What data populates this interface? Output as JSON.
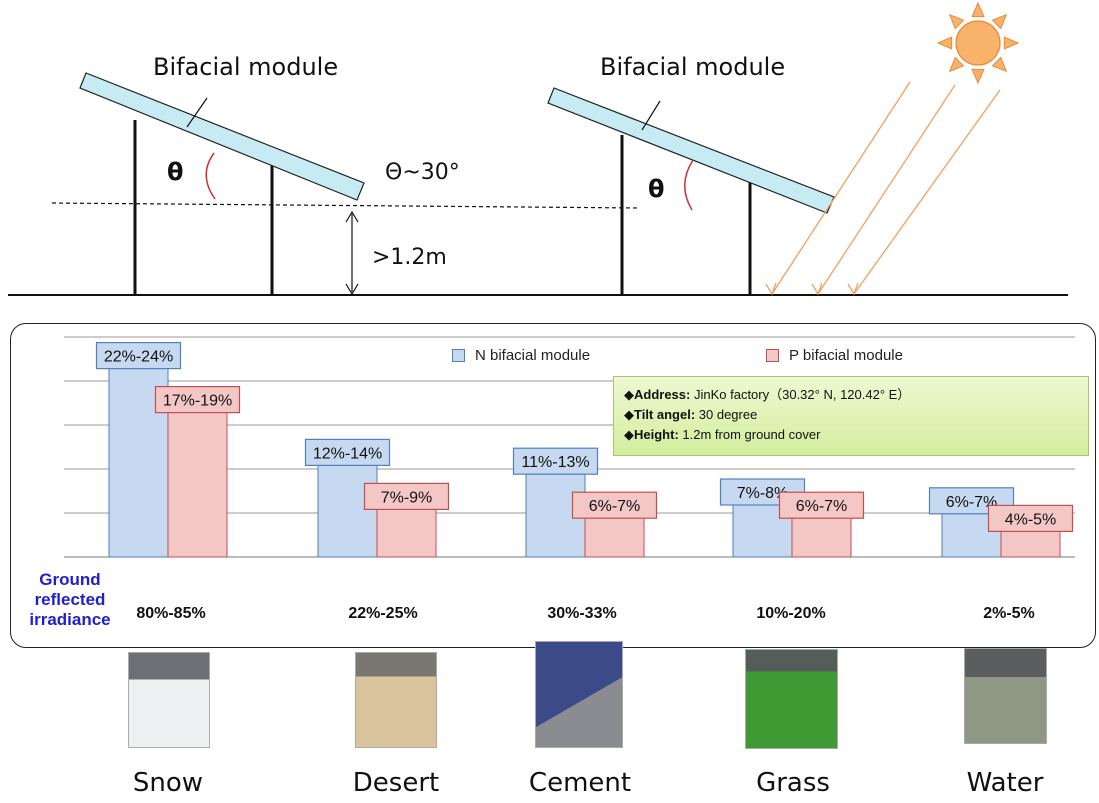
{
  "diagram": {
    "left_module_label": "Bifacial module",
    "right_module_label": "Bifacial module",
    "theta_symbol_left": "θ",
    "theta_symbol_right": "θ",
    "tilt_note": "Θ~30°",
    "height_note": ">1.2m"
  },
  "info": {
    "address_label": "Address:",
    "address_value": " JinKo factory（30.32° N, 120.42° E）",
    "tilt_label": "Tilt angel:",
    "tilt_value": " 30 degree",
    "height_label": "Height:",
    "height_value": " 1.2m from ground cover",
    "bullet": "◆"
  },
  "chart_data": {
    "type": "bar",
    "categories": [
      "Snow",
      "Desert",
      "Cement",
      "Grass",
      "Water"
    ],
    "series": [
      {
        "name": "N bifacial module",
        "values": [
          23,
          12,
          11,
          7.5,
          6.5
        ],
        "labels": [
          "22%-24%",
          "12%-14%",
          "11%-13%",
          "7%-8%",
          "6%-7%"
        ],
        "color": "#c6d9f1"
      },
      {
        "name": "P bifacial module",
        "values": [
          18,
          7,
          6,
          6,
          4.5
        ],
        "labels": [
          "17%-19%",
          "7%-9%",
          "6%-7%",
          "6%-7%",
          "4%-5%"
        ],
        "color": "#f4c7c7"
      }
    ],
    "ylim": [
      0,
      25
    ],
    "grid": true,
    "legend": "top",
    "ground_reflected_title": "Ground reflected irradiance",
    "ground_reflected": [
      "80%-85%",
      "22%-25%",
      "30%-33%",
      "10%-20%",
      "2%-5%"
    ]
  },
  "colors": {
    "n_fill": "#c6d9f1",
    "n_stroke": "#4f81bd",
    "p_fill": "#f4c7c7",
    "p_stroke": "#c0504d",
    "sun": "#f8b26a",
    "rays": "#f0a060",
    "module_fill": "#c6ebf3",
    "theta_arc": "#d0302a"
  },
  "photos": [
    {
      "name": "snow-photo",
      "color": "#e9ecef"
    },
    {
      "name": "desert-photo",
      "color": "#d7c19a"
    },
    {
      "name": "cement-photo",
      "color": "#5c6170"
    },
    {
      "name": "grass-photo",
      "color": "#3d8a32"
    },
    {
      "name": "water-photo",
      "color": "#7d8878"
    }
  ]
}
